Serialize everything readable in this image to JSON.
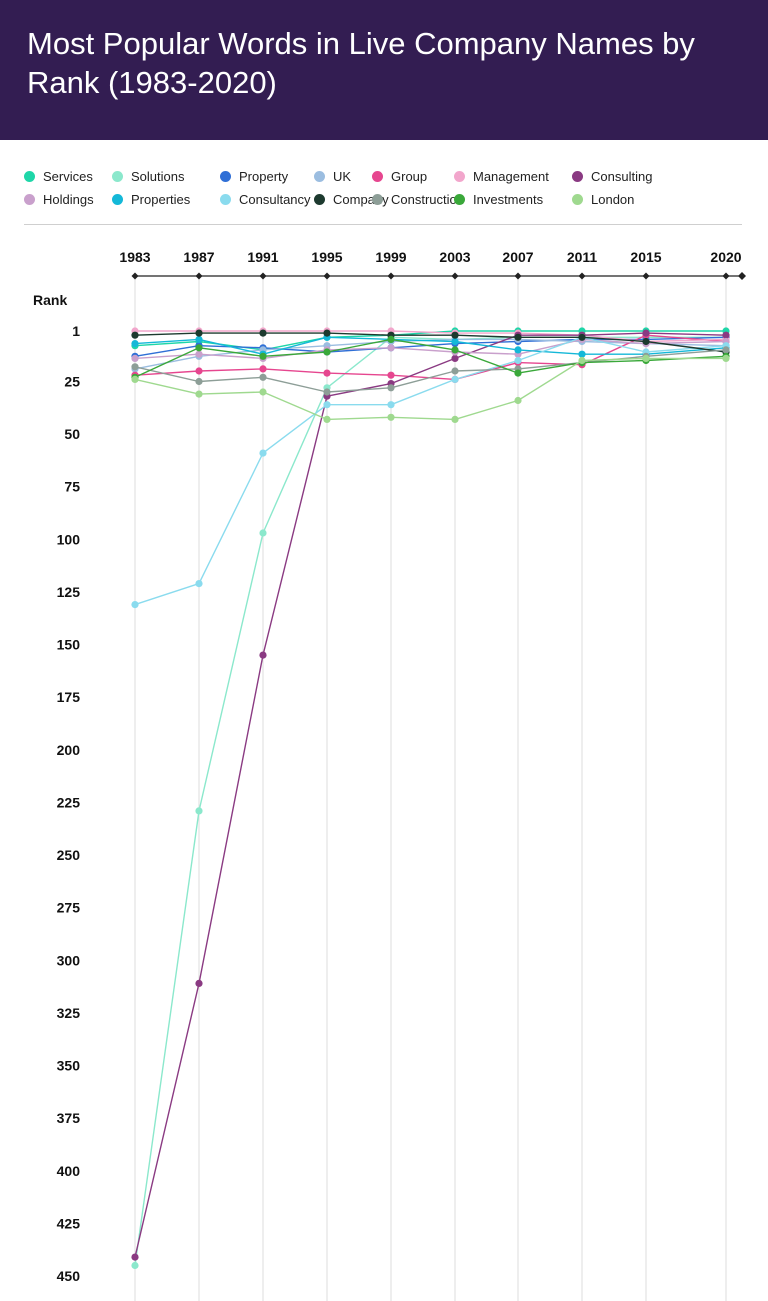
{
  "title": "Most Popular Words in Live Company Names by Rank (1983-2020)",
  "chart_data": {
    "type": "line",
    "title": "Most Popular Words in Live Company Names by Rank (1983-2020)",
    "ylabel": "Rank",
    "xlabel": "",
    "x": [
      "1983",
      "1987",
      "1991",
      "1995",
      "1999",
      "2003",
      "2007",
      "2011",
      "2015",
      "2020"
    ],
    "ylim": [
      1,
      450
    ],
    "y_inverted": true,
    "y_ticks": [
      "1",
      "25",
      "50",
      "75",
      "100",
      "125",
      "150",
      "175",
      "200",
      "225",
      "250",
      "275",
      "300",
      "325",
      "350",
      "375",
      "400",
      "425",
      "450"
    ],
    "grid": "vertical",
    "legend": "top",
    "series": [
      {
        "name": "Services",
        "color": "#1ed6a8",
        "values": [
          8,
          6,
          10,
          4,
          3,
          1,
          1,
          1,
          1,
          1
        ]
      },
      {
        "name": "Solutions",
        "color": "#8be8cc",
        "values": [
          445,
          229,
          97,
          28,
          4,
          5,
          4,
          4,
          4,
          4
        ]
      },
      {
        "name": "Property",
        "color": "#2f6fd6",
        "values": [
          13,
          8,
          9,
          11,
          9,
          7,
          6,
          5,
          5,
          4
        ]
      },
      {
        "name": "UK",
        "color": "#9bbde0",
        "values": [
          19,
          13,
          10,
          8,
          6,
          5,
          5,
          6,
          7,
          8
        ]
      },
      {
        "name": "Group",
        "color": "#e6468f",
        "values": [
          22,
          20,
          19,
          21,
          22,
          24,
          16,
          17,
          3,
          6
        ]
      },
      {
        "name": "Management",
        "color": "#f2a6cc",
        "values": [
          1,
          1,
          1,
          1,
          1,
          2,
          2,
          3,
          6,
          5
        ]
      },
      {
        "name": "Consulting",
        "color": "#8a3a82",
        "values": [
          441,
          311,
          155,
          32,
          26,
          14,
          3,
          3,
          2,
          3
        ]
      },
      {
        "name": "Holdings",
        "color": "#c9a0cc",
        "values": [
          14,
          12,
          14,
          10,
          9,
          11,
          12,
          5,
          7,
          6
        ]
      },
      {
        "name": "Properties",
        "color": "#14b8d8",
        "values": [
          7,
          5,
          12,
          4,
          5,
          6,
          10,
          12,
          12,
          9
        ]
      },
      {
        "name": "Consultancy",
        "color": "#8adbee",
        "values": [
          131,
          121,
          59,
          36,
          36,
          24,
          15,
          4,
          11,
          8
        ]
      },
      {
        "name": "Company",
        "color": "#1d3a2f",
        "values": [
          3,
          2,
          2,
          2,
          3,
          3,
          4,
          4,
          6,
          11
        ]
      },
      {
        "name": "Construction",
        "color": "#8d9e97",
        "values": [
          18,
          25,
          23,
          30,
          28,
          20,
          19,
          16,
          13,
          10
        ]
      },
      {
        "name": "Investments",
        "color": "#3aa83a",
        "values": [
          23,
          9,
          13,
          11,
          5,
          10,
          21,
          16,
          15,
          13
        ]
      },
      {
        "name": "London",
        "color": "#9fd98f",
        "values": [
          24,
          31,
          30,
          43,
          42,
          43,
          34,
          15,
          14,
          14
        ]
      }
    ]
  }
}
